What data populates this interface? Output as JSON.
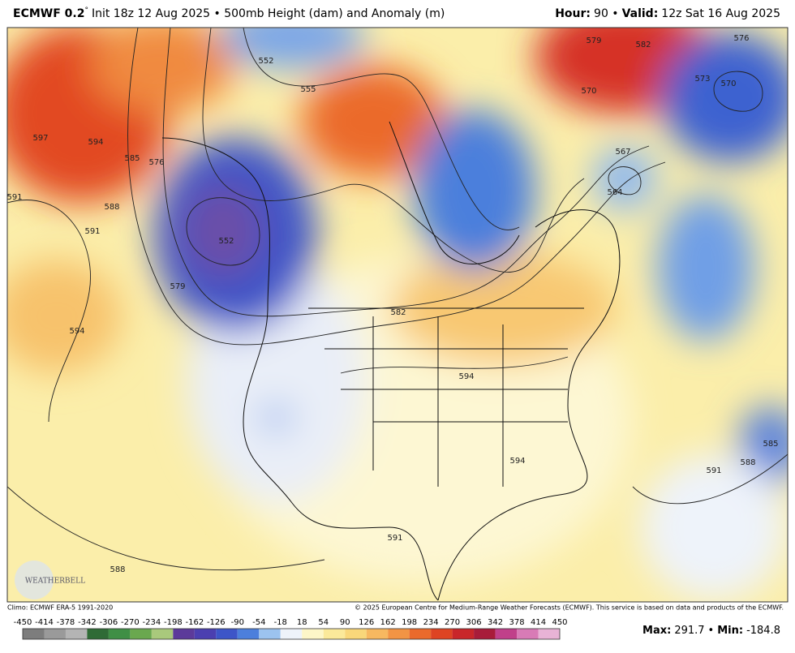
{
  "header": {
    "model": "ECMWF 0.2",
    "degree": "°",
    "description": "Init 18z 12 Aug 2025 • 500mb Height (dam) and Anomaly (m)",
    "hour_label": "Hour:",
    "hour": "90 •",
    "valid_label": "Valid:",
    "valid": "12z Sat 16 Aug 2025"
  },
  "footer": {
    "climo": "Climo: ECMWF ERA-5 1991-2020",
    "copyright": "© 2025 European Centre for Medium-Range Weather Forecasts (ECMWF). This service is based on data and products of the ECMWF.",
    "max_label": "Max:",
    "max": 291.7,
    "separator": "•",
    "min_label": "Min:",
    "min": -184.8
  },
  "logo": "WEATHERBELL",
  "colorbar": {
    "ticks": [
      -450,
      -414,
      -378,
      -342,
      -306,
      -270,
      -234,
      -198,
      -162,
      -126,
      -90,
      -54,
      -18,
      18,
      54,
      90,
      126,
      162,
      198,
      234,
      270,
      306,
      342,
      378,
      414,
      450
    ],
    "colors": [
      "#7d7d7d",
      "#9a9a9a",
      "#b4b4b4",
      "#2f6b36",
      "#3f8f45",
      "#6aa84f",
      "#a9c97c",
      "#5c3a9a",
      "#4b3fb0",
      "#3d55c8",
      "#4c7fdc",
      "#9cc3ef",
      "#eef3fa",
      "#fdf6c8",
      "#fbe99a",
      "#f9d77a",
      "#f7b860",
      "#f29444",
      "#eb6a2c",
      "#de4423",
      "#c9262a",
      "#a81c3a",
      "#c0408a",
      "#d87bb6",
      "#e8b3d6"
    ]
  },
  "contour_labels": [
    597,
    594,
    591,
    588,
    585,
    576,
    591,
    594,
    552,
    579,
    552,
    555,
    582,
    594,
    570,
    573,
    576,
    579,
    582,
    570,
    567,
    564,
    591,
    588,
    585,
    591,
    588,
    594
  ]
}
